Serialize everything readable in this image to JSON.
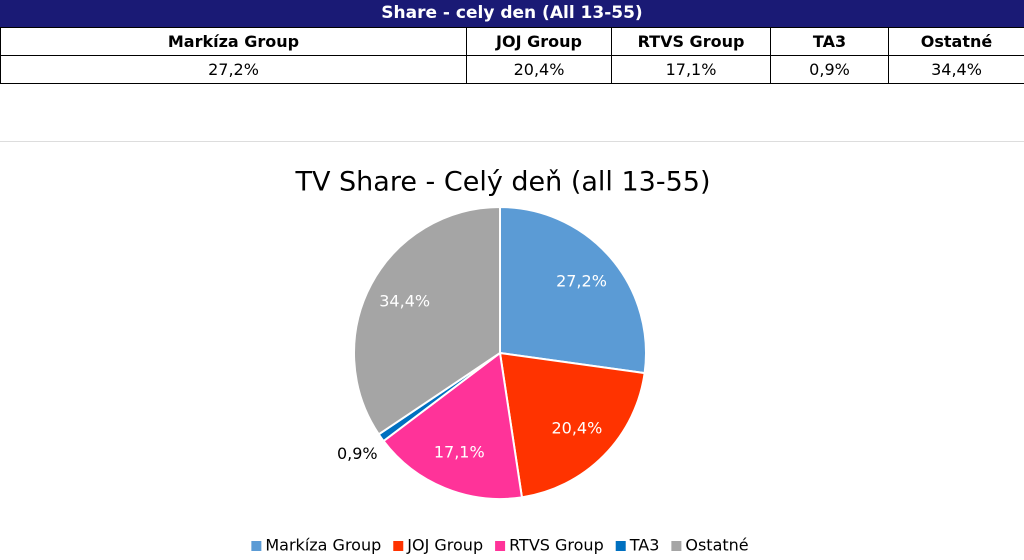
{
  "table": {
    "title": "Share - cely den (All 13-55)",
    "columns": [
      "Markíza Group",
      "JOJ Group",
      "RTVS Group",
      "TA3",
      "Ostatné"
    ],
    "rows": [
      [
        "27,2%",
        "20,4%",
        "17,1%",
        "0,9%",
        "34,4%"
      ]
    ]
  },
  "chart_data": {
    "type": "pie",
    "title": "TV Share - Celý deň (all 13-55)",
    "categories": [
      "Markíza Group",
      "JOJ Group",
      "RTVS Group",
      "TA3",
      "Ostatné"
    ],
    "values": [
      27.2,
      20.4,
      17.1,
      0.9,
      34.4
    ],
    "value_labels": [
      "27,2%",
      "20,4%",
      "17,1%",
      "0,9%",
      "34,4%"
    ],
    "colors": [
      "#5b9bd5",
      "#ff3300",
      "#ff3399",
      "#0070c0",
      "#a5a5a5"
    ],
    "legend": "bottom"
  }
}
